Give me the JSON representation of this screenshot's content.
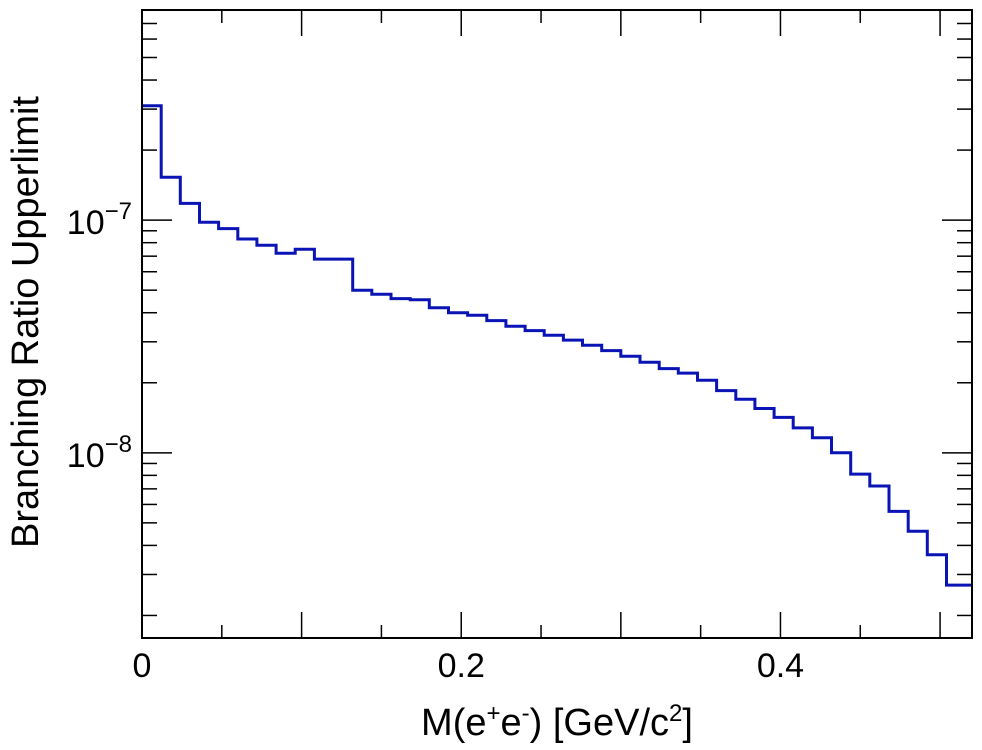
{
  "chart_data": {
    "type": "histogram",
    "title": "",
    "xlabel": {
      "base": "M(e",
      "sup1": "+",
      "mid": "e",
      "sup2": "-",
      "tail": ") [GeV/c",
      "sup3": "2",
      "end": "]"
    },
    "ylabel": "Branching Ratio Upperlimit",
    "xlim": [
      0,
      0.52
    ],
    "ylim": [
      1.6e-09,
      8e-07
    ],
    "yscale": "log",
    "x_ticks": [
      {
        "value": 0,
        "label": "0"
      },
      {
        "value": 0.2,
        "label": "0.2"
      },
      {
        "value": 0.4,
        "label": "0.4"
      }
    ],
    "y_ticks": [
      {
        "value": 1e-08,
        "base": "10",
        "exp": "−8"
      },
      {
        "value": 1e-07,
        "base": "10",
        "exp": "−7"
      }
    ],
    "color": "#0a14b4",
    "bin_edges": [
      0,
      0.012,
      0.024,
      0.036,
      0.048,
      0.06,
      0.072,
      0.084,
      0.096,
      0.108,
      0.12,
      0.132,
      0.144,
      0.156,
      0.168,
      0.18,
      0.192,
      0.204,
      0.216,
      0.228,
      0.24,
      0.252,
      0.264,
      0.276,
      0.288,
      0.3,
      0.312,
      0.324,
      0.336,
      0.348,
      0.36,
      0.372,
      0.384,
      0.396,
      0.408,
      0.42,
      0.432,
      0.444,
      0.456,
      0.468,
      0.48,
      0.492,
      0.504,
      0.516,
      0.52
    ],
    "values": [
      3.1e-07,
      1.53e-07,
      1.18e-07,
      9.8e-08,
      9.2e-08,
      8.3e-08,
      7.8e-08,
      7.2e-08,
      7.5e-08,
      6.8e-08,
      6.8e-08,
      5e-08,
      4.8e-08,
      4.6e-08,
      4.55e-08,
      4.2e-08,
      4e-08,
      3.9e-08,
      3.7e-08,
      3.5e-08,
      3.35e-08,
      3.2e-08,
      3.05e-08,
      2.9e-08,
      2.75e-08,
      2.6e-08,
      2.45e-08,
      2.3e-08,
      2.2e-08,
      2.05e-08,
      1.85e-08,
      1.7e-08,
      1.55e-08,
      1.42e-08,
      1.28e-08,
      1.16e-08,
      1e-08,
      8.1e-09,
      7.2e-09,
      5.6e-09,
      4.6e-09,
      3.65e-09,
      2.7e-09,
      2.7e-09
    ]
  }
}
